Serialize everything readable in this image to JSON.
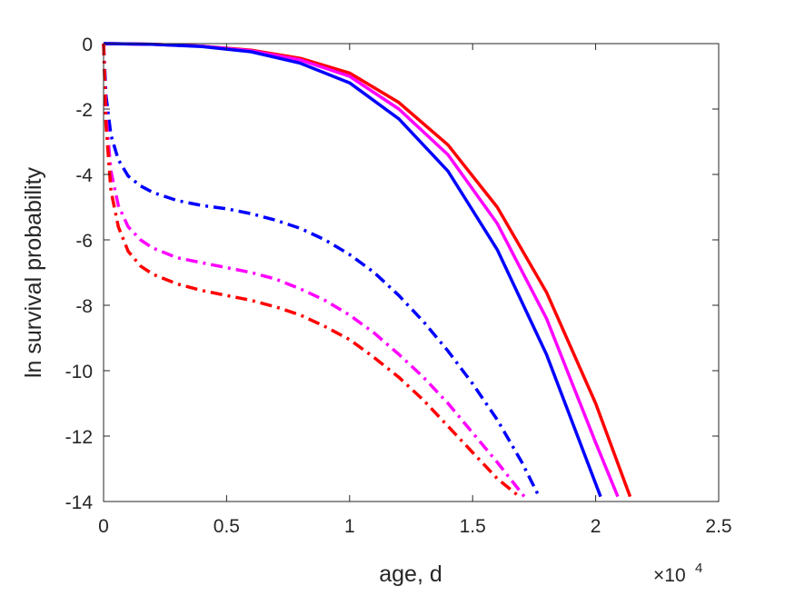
{
  "chart_data": {
    "type": "line",
    "title": "",
    "xlabel": "age, d",
    "ylabel": "ln survival probability",
    "x_exponent_label": "×10",
    "x_exponent_power": "4",
    "xlim": [
      0,
      2.5
    ],
    "ylim": [
      -14,
      0
    ],
    "x_ticks": [
      0,
      0.5,
      1,
      1.5,
      2,
      2.5
    ],
    "x_tick_labels": [
      "0",
      "0.5",
      "1",
      "1.5",
      "2",
      "2.5"
    ],
    "y_ticks": [
      0,
      -2,
      -4,
      -6,
      -8,
      -10,
      -12,
      -14
    ],
    "y_tick_labels": [
      "0",
      "-2",
      "-4",
      "-6",
      "-8",
      "-10",
      "-12",
      "-14"
    ],
    "grid": false,
    "legend": false,
    "series": [
      {
        "color": "#ff0000",
        "style": "solid",
        "x": [
          0,
          0.2,
          0.4,
          0.6,
          0.8,
          1.0,
          1.2,
          1.4,
          1.6,
          1.8,
          2.0,
          2.14
        ],
        "y": [
          0,
          -0.02,
          -0.08,
          -0.2,
          -0.45,
          -0.9,
          -1.8,
          -3.1,
          -5.0,
          -7.6,
          -11.0,
          -13.85
        ]
      },
      {
        "color": "#ff00ff",
        "style": "solid",
        "x": [
          0,
          0.2,
          0.4,
          0.6,
          0.8,
          1.0,
          1.2,
          1.4,
          1.6,
          1.8,
          2.0,
          2.09
        ],
        "y": [
          0,
          -0.02,
          -0.08,
          -0.22,
          -0.5,
          -1.0,
          -2.0,
          -3.4,
          -5.5,
          -8.4,
          -12.2,
          -13.85
        ]
      },
      {
        "color": "#0000ff",
        "style": "solid",
        "x": [
          0,
          0.2,
          0.4,
          0.6,
          0.8,
          1.0,
          1.2,
          1.4,
          1.6,
          1.8,
          2.02
        ],
        "y": [
          0,
          -0.02,
          -0.09,
          -0.25,
          -0.6,
          -1.2,
          -2.3,
          -3.9,
          -6.3,
          -9.5,
          -13.85
        ]
      },
      {
        "color": "#0000ff",
        "style": "dashdot",
        "x": [
          0,
          0.01,
          0.03,
          0.06,
          0.1,
          0.15,
          0.2,
          0.3,
          0.4,
          0.5,
          0.6,
          0.7,
          0.8,
          0.9,
          1.0,
          1.1,
          1.2,
          1.3,
          1.4,
          1.5,
          1.6,
          1.7,
          1.77
        ],
        "y": [
          0,
          -1.6,
          -2.8,
          -3.55,
          -4.05,
          -4.35,
          -4.55,
          -4.8,
          -4.95,
          -5.05,
          -5.2,
          -5.4,
          -5.65,
          -6.0,
          -6.45,
          -7.0,
          -7.7,
          -8.5,
          -9.4,
          -10.4,
          -11.5,
          -12.8,
          -13.85
        ]
      },
      {
        "color": "#ff00ff",
        "style": "dashdot",
        "x": [
          0,
          0.01,
          0.03,
          0.06,
          0.1,
          0.15,
          0.2,
          0.3,
          0.4,
          0.5,
          0.6,
          0.7,
          0.8,
          0.9,
          1.0,
          1.1,
          1.2,
          1.3,
          1.4,
          1.5,
          1.6,
          1.71
        ],
        "y": [
          0,
          -2.2,
          -3.9,
          -4.95,
          -5.6,
          -6.0,
          -6.25,
          -6.55,
          -6.7,
          -6.85,
          -7.0,
          -7.2,
          -7.5,
          -7.85,
          -8.3,
          -8.85,
          -9.5,
          -10.2,
          -11.0,
          -11.9,
          -12.8,
          -13.85
        ]
      },
      {
        "color": "#ff0000",
        "style": "dashdot",
        "x": [
          0,
          0.01,
          0.03,
          0.06,
          0.1,
          0.15,
          0.2,
          0.3,
          0.4,
          0.5,
          0.6,
          0.7,
          0.8,
          0.9,
          1.0,
          1.1,
          1.2,
          1.3,
          1.4,
          1.5,
          1.6,
          1.69
        ],
        "y": [
          0,
          -2.5,
          -4.5,
          -5.6,
          -6.35,
          -6.8,
          -7.05,
          -7.35,
          -7.55,
          -7.7,
          -7.85,
          -8.05,
          -8.3,
          -8.65,
          -9.05,
          -9.6,
          -10.2,
          -10.9,
          -11.7,
          -12.5,
          -13.3,
          -13.85
        ]
      }
    ]
  }
}
